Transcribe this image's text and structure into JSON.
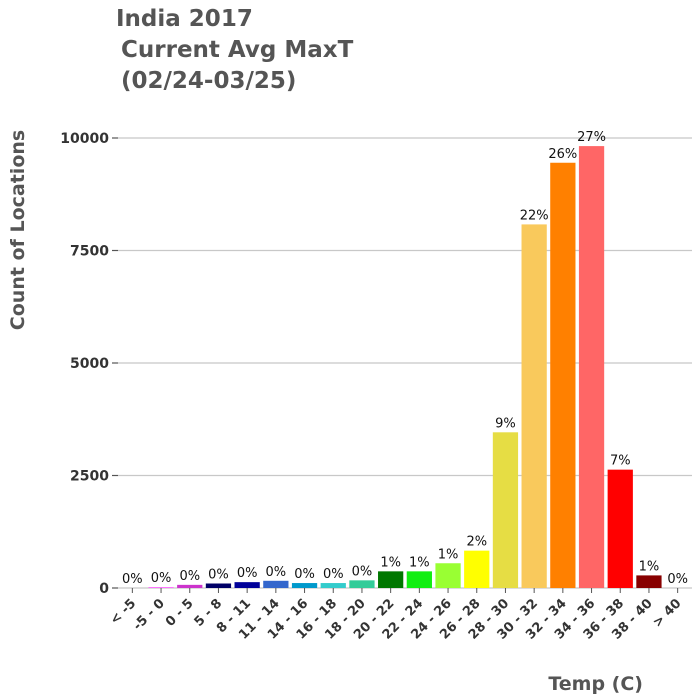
{
  "chart_data": {
    "type": "bar",
    "title_lines": [
      "India 2017",
      "Current Avg MaxT",
      "(02/24-03/25)"
    ],
    "xlabel": "Temp (C)",
    "ylabel": "Count of Locations",
    "ylim": [
      0,
      10400
    ],
    "yticks": [
      0,
      2500,
      5000,
      7500,
      10000
    ],
    "grid": true,
    "legend": "none",
    "categories": [
      "< -5",
      "-5 - 0",
      "0 - 5",
      "5 - 8",
      "8 - 11",
      "11 - 14",
      "14 - 16",
      "16 - 18",
      "18 - 20",
      "20 - 22",
      "22 - 24",
      "24 - 26",
      "26 - 28",
      "28 - 30",
      "30 - 32",
      "32 - 34",
      "34 - 36",
      "36 - 38",
      "38 - 40",
      "> 40"
    ],
    "values": [
      0,
      20,
      70,
      100,
      130,
      160,
      110,
      110,
      170,
      370,
      370,
      550,
      830,
      3460,
      8080,
      9450,
      9820,
      2630,
      280,
      0
    ],
    "percent_labels": [
      "0%",
      "0%",
      "0%",
      "0%",
      "0%",
      "0%",
      "0%",
      "0%",
      "0%",
      "1%",
      "1%",
      "1%",
      "2%",
      "9%",
      "22%",
      "26%",
      "27%",
      "7%",
      "1%",
      "0%"
    ],
    "colors": [
      "#ff99cc",
      "#ff66ff",
      "#cc33cc",
      "#000066",
      "#000099",
      "#3366cc",
      "#0099cc",
      "#33cccc",
      "#33cc99",
      "#007700",
      "#11ee11",
      "#99ff33",
      "#ffff00",
      "#e6dd44",
      "#f9c95c",
      "#ff8000",
      "#ff6666",
      "#ff0000",
      "#880000",
      "#ffffff"
    ]
  }
}
